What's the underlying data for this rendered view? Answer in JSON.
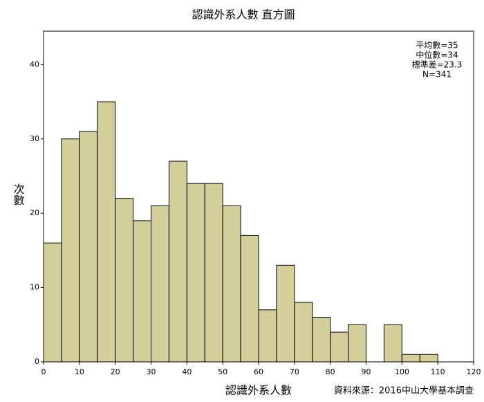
{
  "chart_data": {
    "type": "histogram",
    "title": "認識外系人數 直方圖",
    "xlabel": "認識外系人數",
    "ylabel": "次數",
    "source": "資料來源：2016中山大學基本調查",
    "annotations": [
      "平均數=35",
      "中位數=34",
      "標準差=23.3",
      "N=341"
    ],
    "bins": [
      0,
      5,
      10,
      15,
      20,
      25,
      30,
      35,
      40,
      45,
      50,
      55,
      60,
      65,
      70,
      75,
      80,
      85,
      90,
      95,
      100,
      105,
      110
    ],
    "values": [
      16,
      30,
      31,
      35,
      22,
      19,
      21,
      27,
      24,
      24,
      21,
      17,
      7,
      13,
      8,
      6,
      4,
      5,
      0,
      5,
      1,
      1
    ],
    "color": "#d3cf9b",
    "xlim": [
      0,
      120
    ],
    "xticks": [
      0,
      10,
      20,
      30,
      40,
      50,
      60,
      70,
      80,
      90,
      100,
      110,
      120
    ],
    "ylim": [
      0,
      44.5
    ],
    "yticks": [
      0,
      10,
      20,
      30,
      40
    ]
  }
}
